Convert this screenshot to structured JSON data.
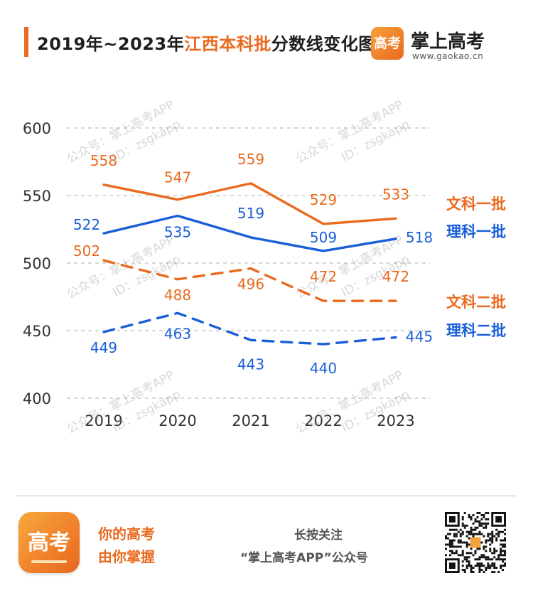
{
  "header": {
    "title_prefix": "2019年~2023年",
    "title_highlight": "江西本科批",
    "title_suffix": "分数线变化图",
    "brand_logo_text": "高考",
    "brand_name": "掌上高考",
    "brand_url": "www.gaokao.cn"
  },
  "watermark": {
    "line1": "公众号：掌上高考APP",
    "line2": "ID：zsgkapp"
  },
  "colors": {
    "orange": "#ea6a1f",
    "blue": "#1a5fd8",
    "grid": "#c8c8c8"
  },
  "chart_data": {
    "type": "line",
    "title": "2019年~2023年江西本科批分数线变化图",
    "categories": [
      "2019",
      "2020",
      "2021",
      "2022",
      "2023"
    ],
    "ylim": [
      400,
      600
    ],
    "yticks": [
      400,
      450,
      500,
      550,
      600
    ],
    "grid": true,
    "legend": "right",
    "series": [
      {
        "name": "文科一批",
        "values": [
          558,
          547,
          559,
          529,
          533
        ],
        "color": "#ea6a1f",
        "dash": false
      },
      {
        "name": "理科一批",
        "values": [
          522,
          535,
          519,
          509,
          518
        ],
        "color": "#1a5fd8",
        "dash": false
      },
      {
        "name": "文科二批",
        "values": [
          502,
          488,
          496,
          472,
          472
        ],
        "color": "#ea6a1f",
        "dash": true
      },
      {
        "name": "理科二批",
        "values": [
          449,
          463,
          443,
          440,
          445
        ],
        "color": "#1a5fd8",
        "dash": true
      }
    ]
  },
  "footer": {
    "app_logo_text": "高考",
    "slogan_line1": "你的高考",
    "slogan_line2": "由你掌握",
    "follow_line1": "长按关注",
    "follow_line2": "“掌上高考APP”公众号"
  }
}
